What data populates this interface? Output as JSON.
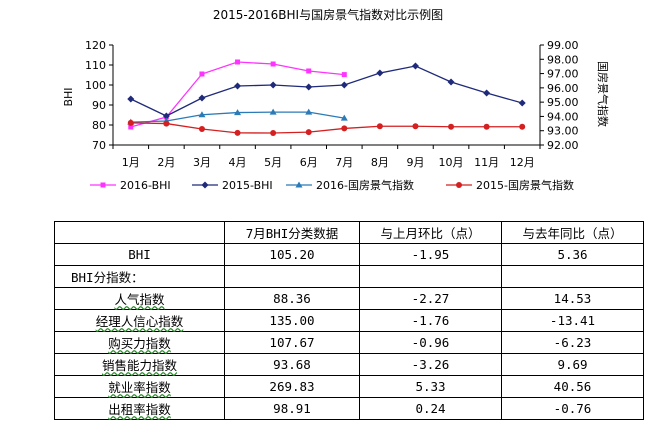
{
  "chart_data": {
    "type": "line",
    "title": "2015-2016BHI与国房景气指数对比示例图",
    "categories": [
      "1月",
      "2月",
      "3月",
      "4月",
      "5月",
      "6月",
      "7月",
      "8月",
      "9月",
      "10月",
      "11月",
      "12月"
    ],
    "ylabel": "BHI",
    "ylim": [
      70,
      120
    ],
    "yticks": [
      "70",
      "80",
      "90",
      "100",
      "110",
      "120"
    ],
    "y2label": "国房景气指数",
    "y2lim": [
      92,
      99
    ],
    "y2ticks": [
      "92.00",
      "93.00",
      "94.00",
      "95.00",
      "96.00",
      "97.00",
      "98.00",
      "99.00"
    ],
    "grid": false,
    "legend_position": "bottom",
    "series": [
      {
        "name": "2016-BHI",
        "axis": "left",
        "color": "#ff33ff",
        "marker": "square",
        "values": [
          79,
          84,
          105.5,
          111.5,
          110.5,
          107,
          105.2,
          null,
          null,
          null,
          null,
          null
        ]
      },
      {
        "name": "2015-BHI",
        "axis": "left",
        "color": "#1f2a7a",
        "marker": "diamond",
        "values": [
          93,
          84.5,
          93.5,
          99.5,
          100,
          99,
          100,
          106,
          109.5,
          101.5,
          96,
          91
        ]
      },
      {
        "name": "2016-国房景气指数",
        "axis": "right",
        "color": "#2a7bb8",
        "marker": "triangle",
        "values": [
          93.6,
          93.68,
          94.12,
          94.27,
          94.3,
          94.3,
          93.88,
          null,
          null,
          null,
          null,
          null
        ]
      },
      {
        "name": "2015-国房景气指数",
        "axis": "right",
        "color": "#d42020",
        "marker": "circle",
        "values": [
          93.55,
          93.5,
          93.12,
          92.85,
          92.84,
          92.9,
          93.16,
          93.31,
          93.31,
          93.28,
          93.28,
          93.28
        ]
      }
    ]
  },
  "table": {
    "headers": [
      "",
      "7月BHI分类数据",
      "与上月环比（点）",
      "与去年同比（点）"
    ],
    "rows": [
      {
        "label": "BHI",
        "values": [
          "105.20",
          "-1.95",
          "5.36"
        ],
        "kind": "main"
      },
      {
        "label": "BHI分指数：",
        "values": [
          "",
          "",
          ""
        ],
        "kind": "section"
      },
      {
        "label": "人气指数",
        "values": [
          "88.36",
          "-2.27",
          "14.53"
        ],
        "kind": "sub"
      },
      {
        "label": "经理人信心指数",
        "values": [
          "135.00",
          "-1.76",
          "-13.41"
        ],
        "kind": "sub"
      },
      {
        "label": "购买力指数",
        "values": [
          "107.67",
          "-0.96",
          "-6.23"
        ],
        "kind": "sub"
      },
      {
        "label": "销售能力指数",
        "values": [
          "93.68",
          "-3.26",
          "9.69"
        ],
        "kind": "sub"
      },
      {
        "label": "就业率指数",
        "values": [
          "269.83",
          "5.33",
          "40.56"
        ],
        "kind": "sub"
      },
      {
        "label": "出租率指数",
        "values": [
          "98.91",
          "0.24",
          "-0.76"
        ],
        "kind": "sub"
      }
    ]
  }
}
